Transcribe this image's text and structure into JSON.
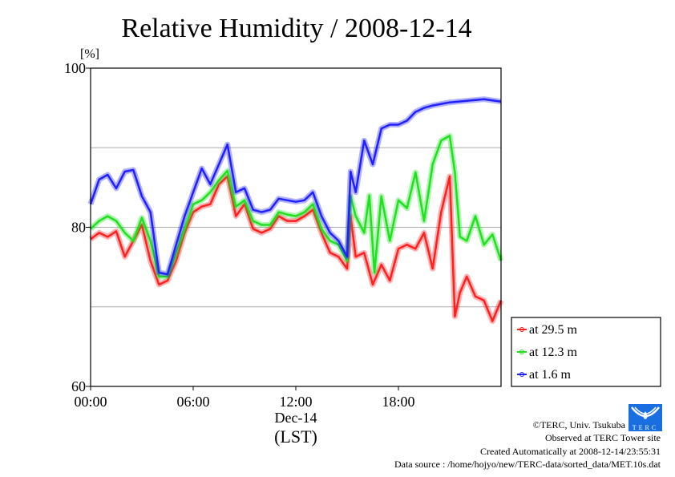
{
  "chart_data": {
    "type": "line",
    "title": "Relative Humidity / 2008-12-14",
    "ylabel": "[%]",
    "xlabel": "(LST)",
    "date_label": "Dec-14",
    "xlim": [
      0,
      24
    ],
    "ylim": [
      60,
      100
    ],
    "x_ticks": [
      {
        "v": 0,
        "label": "00:00"
      },
      {
        "v": 6,
        "label": "06:00"
      },
      {
        "v": 12,
        "label": "12:00"
      },
      {
        "v": 18,
        "label": "18:00"
      }
    ],
    "y_ticks": [
      {
        "v": 60,
        "label": "60"
      },
      {
        "v": 80,
        "label": "80"
      },
      {
        "v": 100,
        "label": "100"
      }
    ],
    "grid_y": [
      70,
      80,
      90
    ],
    "legend_position": "right-bottom",
    "series": [
      {
        "name": "at 29.5 m",
        "color": "#ff2020",
        "x": [
          0,
          0.5,
          1,
          1.5,
          2,
          2.5,
          3,
          3.5,
          4,
          4.5,
          5,
          5.5,
          6,
          6.5,
          7,
          7.5,
          8,
          8.5,
          9,
          9.5,
          10,
          10.5,
          11,
          11.5,
          12,
          12.5,
          13,
          13.5,
          14,
          14.5,
          15,
          15.2,
          15.5,
          16,
          16.5,
          17,
          17.5,
          18,
          18.5,
          19,
          19.5,
          20,
          20.5,
          21,
          21.3,
          21.6,
          22,
          22.5,
          23,
          23.5,
          24
        ],
        "y": [
          78.5,
          79.3,
          78.8,
          79.5,
          76.3,
          78.3,
          80.3,
          75.8,
          72.8,
          73.3,
          75.8,
          79.3,
          81.9,
          82.6,
          82.9,
          85.4,
          86.4,
          81.4,
          82.9,
          79.8,
          79.3,
          79.8,
          81.4,
          80.8,
          80.8,
          81.4,
          82.2,
          79.3,
          76.8,
          76.3,
          74.8,
          81.4,
          76.3,
          76.8,
          72.8,
          75.3,
          73.3,
          77.3,
          77.8,
          77.3,
          79.3,
          74.8,
          81.9,
          86.4,
          68.8,
          71.8,
          73.8,
          71.3,
          70.8,
          68.2,
          70.8
        ]
      },
      {
        "name": "at 12.3 m",
        "color": "#20e020",
        "x": [
          0,
          0.5,
          1,
          1.5,
          2,
          2.5,
          3,
          3.5,
          4,
          4.5,
          5,
          5.5,
          6,
          6.5,
          7,
          7.5,
          8,
          8.5,
          9,
          9.5,
          10,
          10.5,
          11,
          11.5,
          12,
          12.5,
          13,
          13.5,
          14,
          14.5,
          15,
          15.2,
          15.5,
          16,
          16.3,
          16.6,
          17,
          17.5,
          18,
          18.5,
          19,
          19.5,
          20,
          20.5,
          21,
          21.3,
          21.6,
          22,
          22.5,
          23,
          23.5,
          24
        ],
        "y": [
          79.8,
          80.8,
          81.4,
          80.8,
          79.3,
          78.3,
          81.2,
          78.3,
          73.8,
          73.8,
          76.8,
          79.8,
          82.9,
          83.4,
          84.4,
          85.9,
          87.1,
          82.6,
          83.4,
          80.8,
          80.3,
          80.3,
          81.9,
          81.6,
          81.4,
          81.9,
          82.9,
          79.8,
          78.3,
          77.8,
          75.8,
          83.9,
          81.4,
          79.3,
          84.0,
          74.3,
          83.9,
          78.3,
          83.4,
          82.4,
          86.9,
          80.8,
          87.9,
          90.9,
          91.5,
          86.9,
          78.8,
          78.3,
          81.4,
          77.8,
          79.1,
          75.8
        ]
      },
      {
        "name": "at 1.6 m",
        "color": "#2020ff",
        "x": [
          0,
          0.5,
          1,
          1.5,
          2,
          2.5,
          3,
          3.5,
          4,
          4.5,
          5,
          5.5,
          6,
          6.5,
          7,
          7.5,
          8,
          8.5,
          9,
          9.5,
          10,
          10.5,
          11,
          11.5,
          12,
          12.5,
          13,
          13.5,
          14,
          14.5,
          15,
          15.2,
          15.5,
          16,
          16.5,
          17,
          17.5,
          18,
          18.5,
          19,
          19.5,
          20,
          21,
          22,
          23,
          24
        ],
        "y": [
          82.9,
          86.0,
          86.6,
          84.9,
          87.0,
          87.2,
          83.9,
          81.9,
          74.3,
          74.1,
          77.8,
          81.4,
          84.4,
          87.4,
          85.4,
          87.9,
          90.4,
          84.4,
          84.9,
          82.2,
          81.9,
          82.2,
          83.6,
          83.4,
          83.2,
          83.4,
          84.4,
          81.4,
          79.3,
          78.3,
          76.3,
          87.0,
          84.4,
          90.9,
          87.9,
          92.4,
          92.9,
          92.9,
          93.4,
          94.5,
          95.0,
          95.3,
          95.7,
          95.9,
          96.1,
          95.8
        ]
      }
    ]
  },
  "footer": {
    "copyright": "©TERC, Univ. Tsukuba",
    "site": "Observed at TERC Tower site",
    "created": "Created Automatically at 2008-12-14/23:55:31",
    "source": "Data source : /home/hojyo/new/TERC-data/sorted_data/MET.10s.dat",
    "logo_text": "TERC"
  }
}
